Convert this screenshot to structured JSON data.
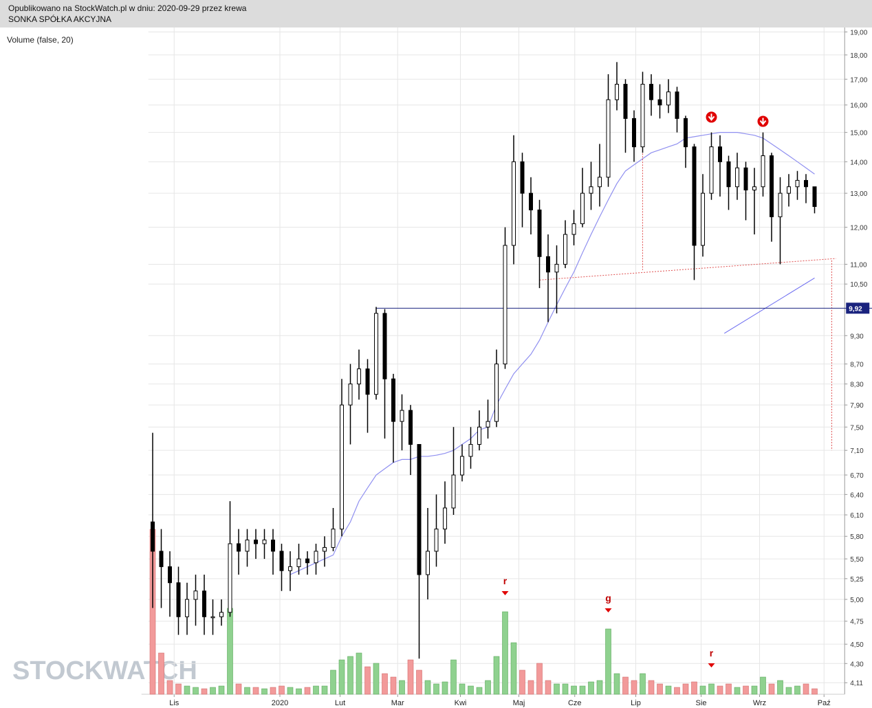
{
  "header": {
    "published": "Opublikowano na StockWatch.pl w dniu: 2020-09-29 przez krewa",
    "company": "SONKA SPÓŁKA AKCYJNA"
  },
  "indicator_label": "Volume (false, 20)",
  "watermark": "STOCKWATCH",
  "chart_data": {
    "type": "candlestick",
    "log_scale": true,
    "grid": true,
    "categories": [
      null,
      null,
      null,
      null,
      null,
      null,
      null,
      null,
      null,
      null,
      null,
      null,
      null,
      null,
      null,
      null,
      null,
      null,
      null,
      null,
      null,
      null,
      null,
      null,
      null,
      null,
      null,
      null,
      null,
      null,
      null,
      null,
      null,
      null,
      null,
      null,
      null,
      null,
      null,
      null,
      null,
      null,
      null,
      null,
      null,
      null,
      null,
      null,
      null,
      null,
      null,
      null,
      null,
      null,
      null,
      null,
      null,
      null,
      null,
      null,
      null,
      null,
      null,
      null,
      null,
      null,
      null,
      null,
      null,
      null,
      null,
      null,
      null,
      null,
      null,
      null,
      null,
      null
    ],
    "open": [
      6.0,
      5.6,
      5.4,
      5.2,
      4.8,
      5.0,
      5.1,
      4.8,
      4.8,
      4.85,
      5.7,
      5.6,
      5.75,
      5.7,
      5.75,
      5.6,
      5.35,
      5.4,
      5.5,
      5.45,
      5.6,
      5.65,
      5.9,
      7.9,
      8.3,
      8.6,
      8.1,
      9.8,
      8.4,
      7.6,
      7.8,
      7.2,
      5.3,
      5.6,
      5.9,
      6.2,
      6.7,
      7.0,
      7.2,
      7.5,
      7.6,
      8.7,
      11.5,
      14.0,
      13.0,
      12.5,
      11.2,
      10.8,
      11.0,
      11.8,
      12.1,
      13.0,
      13.2,
      13.5,
      16.2,
      16.8,
      15.5,
      14.5,
      16.8,
      16.2,
      16.0,
      16.5,
      15.5,
      14.5,
      11.5,
      13.0,
      14.5,
      14.0,
      13.2,
      13.8,
      13.1,
      13.2,
      14.2,
      12.3,
      13.0,
      13.2,
      13.4,
      13.2
    ],
    "high": [
      7.4,
      5.9,
      5.6,
      5.4,
      5.2,
      5.3,
      5.3,
      5.0,
      5.0,
      6.3,
      5.9,
      5.9,
      5.9,
      5.9,
      5.9,
      5.7,
      5.6,
      5.7,
      5.6,
      5.7,
      5.8,
      6.2,
      8.4,
      8.7,
      9.0,
      8.8,
      9.95,
      9.9,
      8.5,
      8.1,
      7.9,
      7.2,
      6.2,
      6.4,
      6.6,
      7.5,
      7.2,
      7.5,
      7.8,
      8.0,
      9.0,
      12.0,
      14.9,
      14.3,
      13.5,
      12.8,
      11.8,
      11.5,
      12.2,
      12.5,
      13.8,
      14.0,
      14.6,
      17.2,
      17.7,
      17.0,
      15.8,
      17.3,
      17.2,
      16.8,
      17.0,
      16.7,
      15.6,
      14.6,
      13.6,
      15.0,
      14.9,
      14.2,
      14.3,
      14.0,
      13.8,
      15.0,
      14.3,
      13.5,
      13.6,
      13.7,
      13.6,
      13.2
    ],
    "low": [
      4.9,
      4.9,
      4.8,
      4.6,
      4.6,
      4.7,
      4.6,
      4.6,
      4.7,
      4.8,
      5.3,
      5.4,
      5.5,
      5.5,
      5.3,
      5.1,
      5.1,
      5.3,
      5.3,
      5.3,
      5.4,
      5.6,
      5.8,
      7.2,
      8.0,
      7.4,
      8.0,
      7.3,
      6.9,
      7.1,
      6.7,
      4.35,
      5.0,
      5.4,
      5.7,
      6.1,
      6.6,
      6.8,
      7.1,
      7.3,
      7.5,
      8.6,
      11.0,
      12.0,
      11.8,
      10.4,
      9.6,
      9.8,
      10.9,
      11.5,
      12.0,
      12.5,
      12.6,
      13.2,
      15.8,
      14.3,
      14.0,
      14.3,
      15.6,
      15.5,
      15.7,
      15.0,
      13.8,
      10.6,
      11.2,
      12.8,
      12.9,
      12.5,
      12.8,
      12.2,
      11.8,
      12.9,
      11.6,
      11.0,
      12.6,
      12.8,
      12.7,
      12.4
    ],
    "close": [
      5.6,
      5.4,
      5.2,
      4.8,
      5.0,
      5.1,
      4.8,
      4.8,
      4.85,
      5.7,
      5.6,
      5.75,
      5.7,
      5.75,
      5.6,
      5.35,
      5.4,
      5.5,
      5.45,
      5.6,
      5.65,
      5.9,
      7.9,
      8.3,
      8.6,
      8.1,
      9.8,
      8.4,
      7.6,
      7.8,
      7.2,
      5.3,
      5.6,
      5.9,
      6.2,
      6.7,
      7.0,
      7.2,
      7.5,
      7.6,
      8.7,
      11.5,
      14.0,
      13.0,
      12.5,
      11.2,
      10.8,
      11.0,
      11.8,
      12.1,
      13.0,
      13.2,
      13.5,
      16.2,
      16.8,
      15.5,
      14.5,
      16.8,
      16.2,
      16.0,
      16.5,
      15.5,
      14.5,
      11.5,
      13.0,
      14.5,
      14.0,
      13.2,
      13.8,
      13.1,
      13.2,
      14.2,
      12.3,
      13.0,
      13.2,
      13.4,
      13.2,
      12.6
    ],
    "volume": [
      240,
      60,
      20,
      15,
      12,
      10,
      8,
      10,
      12,
      125,
      15,
      10,
      10,
      8,
      10,
      12,
      10,
      8,
      10,
      12,
      12,
      35,
      50,
      55,
      60,
      40,
      45,
      30,
      25,
      20,
      50,
      35,
      20,
      15,
      18,
      50,
      15,
      12,
      10,
      20,
      55,
      120,
      75,
      35,
      20,
      45,
      20,
      15,
      15,
      12,
      12,
      18,
      20,
      95,
      30,
      25,
      20,
      30,
      20,
      15,
      12,
      10,
      15,
      18,
      12,
      15,
      12,
      15,
      10,
      12,
      12,
      25,
      15,
      20,
      10,
      12,
      15,
      8
    ],
    "vlim": [
      0,
      250
    ],
    "up_color": "#8fd18f",
    "down_color": "#f29a9a",
    "moving_average": {
      "color": "#8f8ff0",
      "values": [
        null,
        null,
        null,
        null,
        null,
        null,
        null,
        null,
        null,
        null,
        null,
        null,
        null,
        null,
        null,
        null,
        5.3,
        5.35,
        5.4,
        5.45,
        5.5,
        5.55,
        5.8,
        6.0,
        6.3,
        6.5,
        6.7,
        6.8,
        6.9,
        6.95,
        6.95,
        7.0,
        7.0,
        7.02,
        7.05,
        7.1,
        7.2,
        7.3,
        7.45,
        7.5,
        7.9,
        8.2,
        8.5,
        8.7,
        8.9,
        9.2,
        9.6,
        10.0,
        10.4,
        10.8,
        11.3,
        11.8,
        12.3,
        12.8,
        13.3,
        13.7,
        13.9,
        14.1,
        14.3,
        14.4,
        14.5,
        14.6,
        14.8,
        14.85,
        14.9,
        14.95,
        15.0,
        15.0,
        15.0,
        14.95,
        14.9,
        14.8,
        14.6,
        14.4,
        14.2,
        14.0,
        13.8,
        13.6
      ]
    },
    "xlim": [
      -0.5,
      80.5
    ],
    "xticks": [
      {
        "value": 2.5,
        "label": "Lis"
      },
      {
        "value": 14.8,
        "label": "2020"
      },
      {
        "value": 21.8,
        "label": "Lut"
      },
      {
        "value": 28.5,
        "label": "Mar"
      },
      {
        "value": 35.8,
        "label": "Kwi"
      },
      {
        "value": 42.6,
        "label": "Maj"
      },
      {
        "value": 49.1,
        "label": "Cze"
      },
      {
        "value": 56.2,
        "label": "Lip"
      },
      {
        "value": 63.8,
        "label": "Sie"
      },
      {
        "value": 70.6,
        "label": "Wrz"
      },
      {
        "value": 78.1,
        "label": "Paź"
      }
    ],
    "ylim": [
      4.0,
      19.2
    ],
    "yticks": [
      {
        "value": 19,
        "label": "19,00"
      },
      {
        "value": 18,
        "label": "18,00"
      },
      {
        "value": 17,
        "label": "17,00"
      },
      {
        "value": 16,
        "label": "16,00"
      },
      {
        "value": 15,
        "label": "15,00"
      },
      {
        "value": 14,
        "label": "14,00"
      },
      {
        "value": 13,
        "label": "13,00"
      },
      {
        "value": 12,
        "label": "12,00"
      },
      {
        "value": 11,
        "label": "11,00"
      },
      {
        "value": 10.5,
        "label": "10,50"
      },
      {
        "value": 9.3,
        "label": "9,30"
      },
      {
        "value": 8.7,
        "label": "8,70"
      },
      {
        "value": 8.3,
        "label": "8,30"
      },
      {
        "value": 7.9,
        "label": "7,90"
      },
      {
        "value": 7.5,
        "label": "7,50"
      },
      {
        "value": 7.1,
        "label": "7,10"
      },
      {
        "value": 6.7,
        "label": "6,70"
      },
      {
        "value": 6.4,
        "label": "6,40"
      },
      {
        "value": 6.1,
        "label": "6,10"
      },
      {
        "value": 5.8,
        "label": "5,80"
      },
      {
        "value": 5.5,
        "label": "5,50"
      },
      {
        "value": 5.25,
        "label": "5,25"
      },
      {
        "value": 5.0,
        "label": "5,00"
      },
      {
        "value": 4.75,
        "label": "4,75"
      },
      {
        "value": 4.5,
        "label": "4,50"
      },
      {
        "value": 4.3,
        "label": "4,30"
      },
      {
        "value": 4.11,
        "label": "4,11"
      }
    ],
    "price_line": {
      "value": 9.92,
      "label": "9,92",
      "start": 26,
      "color": "#1a237e"
    },
    "trend_lines": [
      {
        "color": "#e05050",
        "dashed": true,
        "points": [
          [
            45,
            10.6
          ],
          [
            79.5,
            11.15
          ]
        ]
      },
      {
        "color": "#e05050",
        "dashed": true,
        "points": [
          [
            57,
            17.0
          ],
          [
            57,
            10.85
          ]
        ]
      },
      {
        "color": "#e05050",
        "dashed": true,
        "points": [
          [
            79,
            11.1
          ],
          [
            79,
            7.1
          ]
        ]
      },
      {
        "color": "#6a6af0",
        "dashed": false,
        "points": [
          [
            66.5,
            9.35
          ],
          [
            77,
            10.65
          ]
        ]
      }
    ],
    "arrow_signals": [
      {
        "index": 65,
        "value": 15.25
      },
      {
        "index": 71,
        "value": 15.1
      }
    ],
    "volume_signals": [
      {
        "index": 41,
        "text": "r"
      },
      {
        "index": 53,
        "text": "g"
      },
      {
        "index": 65,
        "text": "r"
      }
    ]
  }
}
